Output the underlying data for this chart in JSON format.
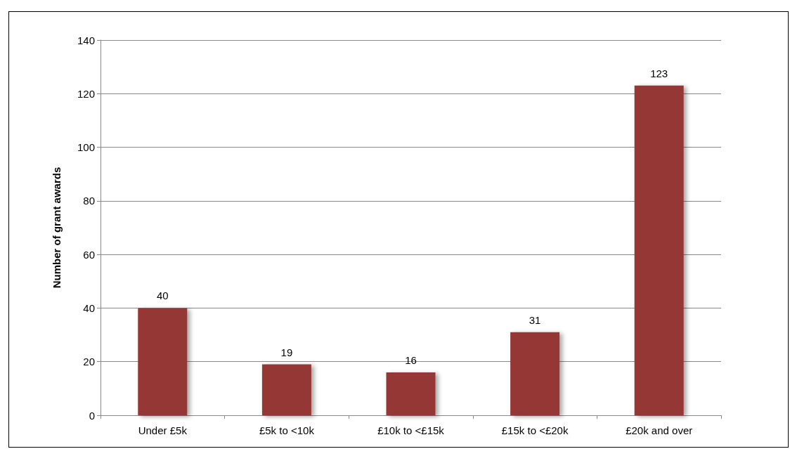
{
  "chart_data": {
    "type": "bar",
    "ylabel": "Number of grant awards",
    "categories": [
      "Under £5k",
      "£5k to <10k",
      "£10k to <£15k",
      "£15k to <£20k",
      "£20k and over"
    ],
    "values": [
      40,
      19,
      16,
      31,
      123
    ],
    "color": "#953735",
    "ylim": [
      0,
      140
    ],
    "yticks": [
      0,
      20,
      40,
      60,
      80,
      100,
      120,
      140
    ],
    "grid": "y",
    "data_labels": true
  }
}
